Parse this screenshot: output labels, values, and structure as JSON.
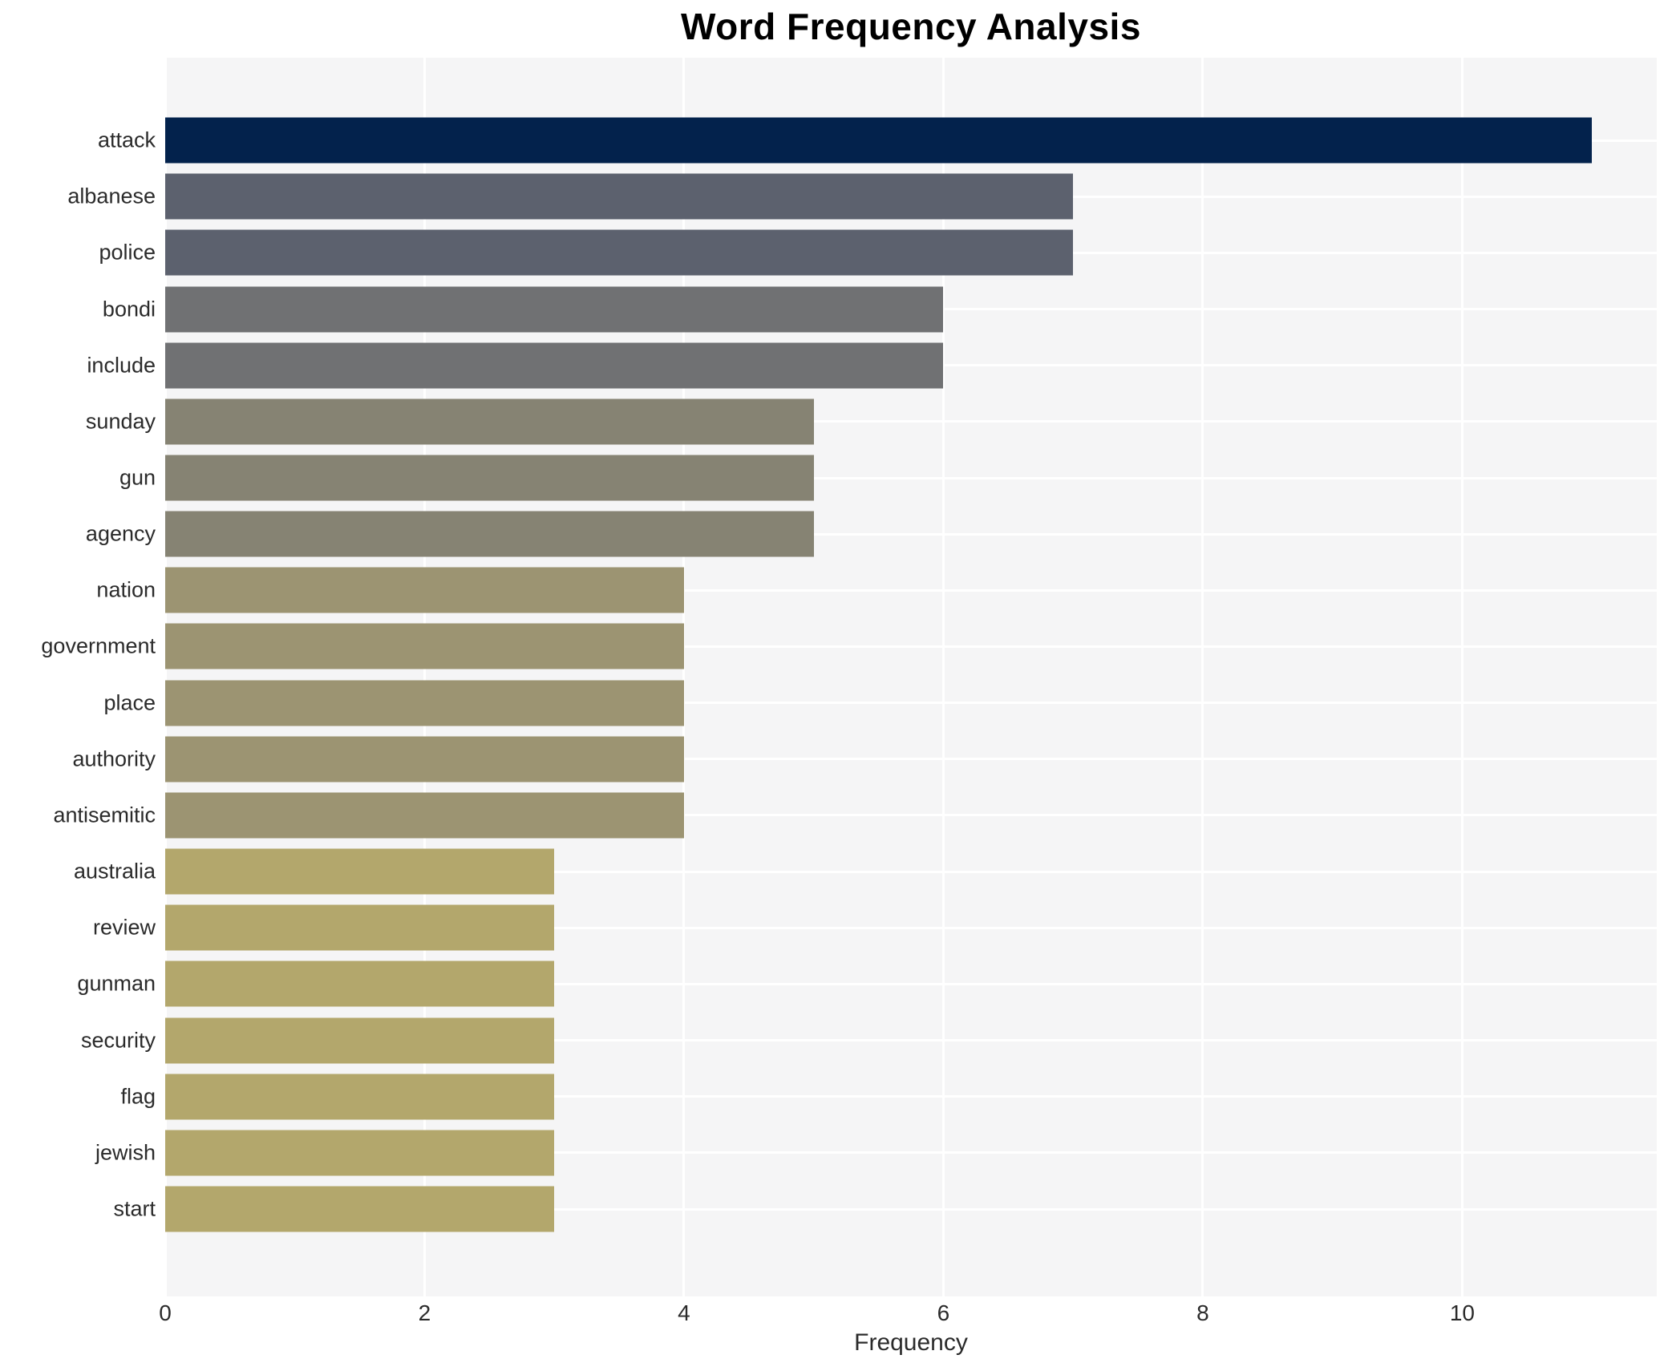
{
  "page": {
    "background": "#ffffff"
  },
  "chart_data": {
    "type": "bar",
    "orientation": "horizontal",
    "title": "Word Frequency Analysis",
    "xlabel": "Frequency",
    "ylabel": "",
    "categories": [
      "attack",
      "albanese",
      "police",
      "bondi",
      "include",
      "sunday",
      "gun",
      "agency",
      "nation",
      "government",
      "place",
      "authority",
      "antisemitic",
      "australia",
      "review",
      "gunman",
      "security",
      "flag",
      "jewish",
      "start"
    ],
    "values": [
      11,
      7,
      7,
      6,
      6,
      5,
      5,
      5,
      4,
      4,
      4,
      4,
      4,
      3,
      3,
      3,
      3,
      3,
      3,
      3
    ],
    "bar_colors": [
      "#03224c",
      "#5c616e",
      "#5c616e",
      "#707173",
      "#707173",
      "#868373",
      "#868373",
      "#868373",
      "#9c9472",
      "#9c9472",
      "#9c9472",
      "#9c9472",
      "#9c9472",
      "#b3a76c",
      "#b3a76c",
      "#b3a76c",
      "#b3a76c",
      "#b3a76c",
      "#b3a76c",
      "#b3a76c"
    ],
    "x_ticks": [
      0,
      2,
      4,
      6,
      8,
      10
    ],
    "xlim": [
      0,
      11.5
    ],
    "grid": "on",
    "legend": "none",
    "plot_background": "#f5f5f6",
    "grid_color": "#ffffff",
    "label_color": "#2b2b2b",
    "title_color": "#000000"
  }
}
